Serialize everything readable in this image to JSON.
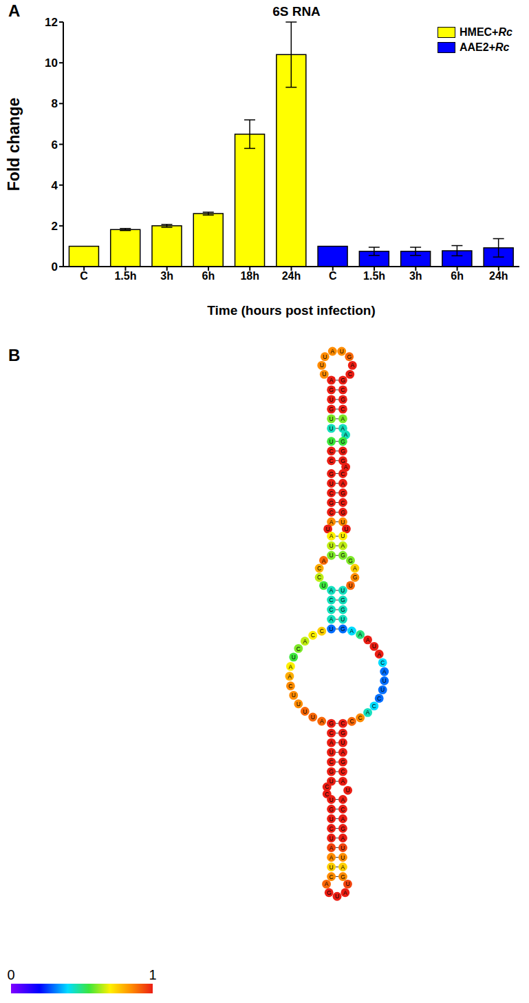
{
  "panel_labels": [
    "A",
    "B"
  ],
  "chart_data": {
    "type": "bar",
    "title": "6S RNA",
    "x_label": "Time (hours post infection)",
    "y_label": "Fold change",
    "categories": [
      "C",
      "1.5h",
      "3h",
      "6h",
      "18h",
      "24h",
      "C",
      "1.5h",
      "3h",
      "6h",
      "24h"
    ],
    "series": [
      {
        "name": "HMEC+Rc",
        "color": "#ffff00",
        "values": [
          1,
          1.82,
          2,
          2.6,
          6.5,
          10.4,
          null,
          null,
          null,
          null,
          null
        ],
        "errors": [
          null,
          0.05,
          0.07,
          0.07,
          0.7,
          1.6,
          null,
          null,
          null,
          null,
          null
        ]
      },
      {
        "name": "AAE2+Rc",
        "color": "#0000ff",
        "values": [
          null,
          null,
          null,
          null,
          null,
          null,
          1,
          0.75,
          0.75,
          0.78,
          0.92
        ],
        "errors": [
          null,
          null,
          null,
          null,
          null,
          null,
          null,
          0.2,
          0.2,
          0.25,
          0.45
        ]
      }
    ],
    "ylim": [
      0,
      12
    ],
    "yticks": [
      0,
      2,
      4,
      6,
      8,
      10,
      12
    ],
    "legend": "top-right"
  },
  "diagram": {
    "colorbar": {
      "range": [
        0,
        1
      ],
      "ticks": [
        0,
        1
      ]
    },
    "elements": [
      {
        "kind": "hairpin",
        "bases": [
          "U",
          "U",
          "U",
          "A",
          "U",
          "G",
          "A",
          "C"
        ],
        "p": [
          0.85,
          0.85,
          0.85,
          0.85,
          0.85,
          0.9,
          1,
          1
        ]
      },
      {
        "kind": "stem",
        "pairs": [
          [
            "A",
            "G",
            1,
            1
          ],
          [
            "G",
            "C",
            1,
            1
          ],
          [
            "U",
            "G",
            1,
            1
          ],
          [
            "G",
            "C",
            1,
            1
          ],
          [
            "U",
            "A",
            0.6,
            0.6
          ],
          [
            "U",
            "A",
            0.45,
            0.45
          ]
        ]
      },
      {
        "kind": "loop",
        "left": [],
        "right": [
          "A"
        ],
        "p_left": [],
        "p_right": [
          0.45
        ]
      },
      {
        "kind": "stem",
        "pairs": [
          [
            "U",
            "G",
            0.55,
            0.55
          ],
          [
            "C",
            "G",
            1,
            1
          ],
          [
            "C",
            "G",
            1,
            1
          ]
        ]
      },
      {
        "kind": "loop",
        "left": [],
        "right": [
          "A"
        ],
        "p_left": [],
        "p_right": [
          1
        ]
      },
      {
        "kind": "stem",
        "pairs": [
          [
            "G",
            "C",
            1,
            1
          ],
          [
            "U",
            "A",
            1,
            1
          ],
          [
            "C",
            "G",
            1,
            1
          ],
          [
            "G",
            "C",
            1,
            1
          ],
          [
            "C",
            "G",
            1,
            1
          ],
          [
            "A",
            "U",
            0.85,
            0.85
          ]
        ]
      },
      {
        "kind": "loop",
        "left": [
          "U"
        ],
        "right": [
          "U"
        ],
        "p_left": [
          1
        ],
        "p_right": [
          1
        ]
      },
      {
        "kind": "stem",
        "pairs": [
          [
            "A",
            "U",
            0.7,
            0.7
          ],
          [
            "U",
            "A",
            0.65,
            0.65
          ],
          [
            "U",
            "G",
            0.6,
            0.6
          ]
        ]
      },
      {
        "kind": "loop",
        "left": [
          "A",
          "C",
          "C",
          "U"
        ],
        "right": [
          "G",
          "A",
          "G",
          "U"
        ],
        "p_left": [
          0.9,
          0.8,
          0.65,
          0.55
        ],
        "p_right": [
          0.6,
          0.75,
          0.85,
          0.9
        ]
      },
      {
        "kind": "stem",
        "pairs": [
          [
            "A",
            "U",
            0.45,
            0.45
          ],
          [
            "C",
            "G",
            0.45,
            0.45
          ],
          [
            "C",
            "G",
            0.45,
            0.45
          ],
          [
            "A",
            "U",
            0.45,
            0.45
          ],
          [
            "U",
            "G",
            0.3,
            0.3
          ]
        ]
      },
      {
        "kind": "loop",
        "left": [
          "C",
          "C",
          "A",
          "C",
          "U",
          "A",
          "A",
          "C",
          "U",
          "U",
          "U",
          "U",
          "A"
        ],
        "right": [
          "A",
          "A",
          "A",
          "U",
          "A",
          "C",
          "A",
          "U",
          "U",
          "C",
          "C",
          "A",
          "C",
          "C"
        ],
        "p_left": [
          0.75,
          0.7,
          0.65,
          0.6,
          0.55,
          0.7,
          0.8,
          0.85,
          0.85,
          0.85,
          0.9,
          0.9,
          0.9
        ],
        "p_right": [
          0.4,
          0.5,
          1,
          1,
          1,
          0.4,
          0.3,
          0.3,
          0.3,
          0.3,
          0.4,
          0.45,
          0.85,
          0.9
        ]
      },
      {
        "kind": "stem",
        "pairs": [
          [
            "G",
            "C",
            1,
            1
          ],
          [
            "C",
            "G",
            1,
            1
          ],
          [
            "A",
            "U",
            1,
            1
          ],
          [
            "U",
            "A",
            1,
            1
          ],
          [
            "C",
            "G",
            1,
            1
          ],
          [
            "G",
            "C",
            1,
            1
          ],
          [
            "U",
            "A",
            1,
            1
          ]
        ]
      },
      {
        "kind": "loop",
        "left": [
          "C",
          "C"
        ],
        "right": [
          "U"
        ],
        "p_left": [
          1,
          1
        ],
        "p_right": [
          1
        ]
      },
      {
        "kind": "stem",
        "pairs": [
          [
            "U",
            "A",
            1,
            1
          ],
          [
            "G",
            "C",
            1,
            1
          ],
          [
            "U",
            "A",
            1,
            1
          ],
          [
            "C",
            "G",
            1,
            1
          ],
          [
            "U",
            "A",
            1,
            1
          ],
          [
            "A",
            "U",
            0.95,
            0.95
          ],
          [
            "A",
            "U",
            0.85,
            0.85
          ],
          [
            "U",
            "A",
            0.75,
            0.75
          ],
          [
            "C",
            "G",
            0.85,
            0.85
          ]
        ]
      },
      {
        "kind": "hairpin",
        "bases": [
          "A",
          "G",
          "U",
          "A",
          "U"
        ],
        "p": [
          0.9,
          1,
          1,
          1,
          0.95
        ]
      }
    ]
  }
}
